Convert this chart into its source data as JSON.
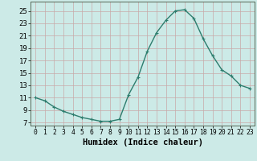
{
  "x": [
    0,
    1,
    2,
    3,
    4,
    5,
    6,
    7,
    8,
    9,
    10,
    11,
    12,
    13,
    14,
    15,
    16,
    17,
    18,
    19,
    20,
    21,
    22,
    23
  ],
  "y": [
    11.0,
    10.5,
    9.5,
    8.8,
    8.3,
    7.8,
    7.5,
    7.2,
    7.2,
    7.5,
    11.5,
    14.3,
    18.5,
    21.5,
    23.5,
    25.0,
    25.2,
    23.8,
    20.5,
    17.8,
    15.5,
    14.5,
    13.0,
    12.5
  ],
  "line_color": "#2d7d6e",
  "marker": "+",
  "markersize": 3,
  "linewidth": 1.0,
  "markeredgewidth": 0.8,
  "bg_color": "#cceae7",
  "grid_color": "#c8a8a8",
  "xlabel": "Humidex (Indice chaleur)",
  "xlabel_fontsize": 7.5,
  "yticks": [
    7,
    9,
    11,
    13,
    15,
    17,
    19,
    21,
    23,
    25
  ],
  "xticks": [
    0,
    1,
    2,
    3,
    4,
    5,
    6,
    7,
    8,
    9,
    10,
    11,
    12,
    13,
    14,
    15,
    16,
    17,
    18,
    19,
    20,
    21,
    22,
    23
  ],
  "xlim": [
    -0.5,
    23.5
  ],
  "ylim": [
    6.5,
    26.5
  ]
}
